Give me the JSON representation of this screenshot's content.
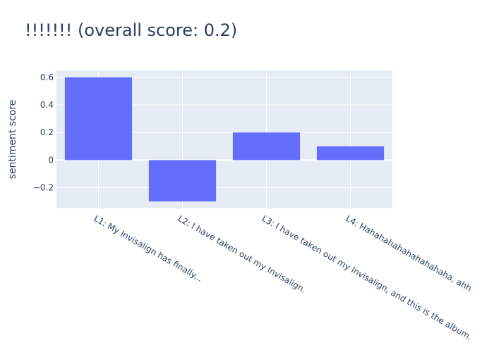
{
  "chart_data": {
    "type": "bar",
    "title": "!!!!!!! (overall score: 0.2)",
    "xlabel": "",
    "ylabel": "sentiment score",
    "categories": [
      "L1: My Invisalign has finally...",
      "L2: I have taken out my Invisalign.",
      "L3: I have taken out my Invisalign, and this is the album.",
      "L4: Hahahahahahahahahaha, ahh"
    ],
    "values": [
      0.6,
      -0.3,
      0.2,
      0.1
    ],
    "yticks": [
      -0.2,
      0,
      0.2,
      0.4,
      0.6
    ],
    "ytick_labels": [
      "−0.2",
      "0",
      "0.2",
      "0.4",
      "0.6"
    ],
    "ylim": [
      -0.35,
      0.65
    ],
    "grid": true,
    "colors": {
      "bar": "#636efa",
      "plot_bg": "#e5ecf6",
      "grid": "#ffffff",
      "text": "#2a3f5f"
    }
  }
}
